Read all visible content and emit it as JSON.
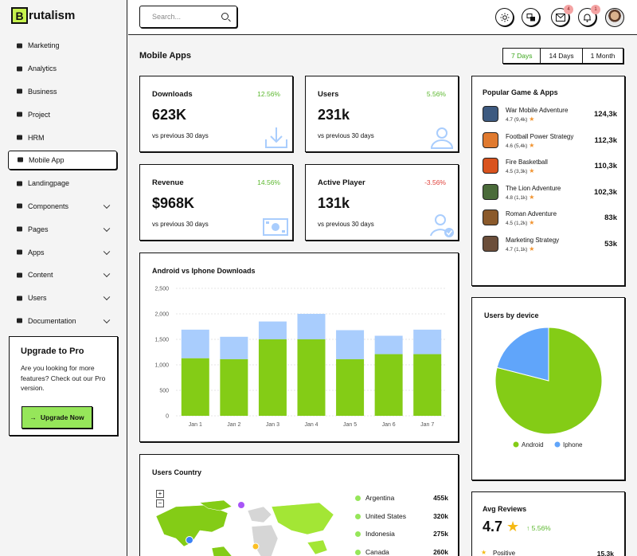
{
  "logo": {
    "letter": "B",
    "text": "rutalism"
  },
  "sidebar": {
    "items": [
      {
        "label": "Marketing",
        "icon": "megaphone-icon"
      },
      {
        "label": "Analytics",
        "icon": "bar-chart-icon"
      },
      {
        "label": "Business",
        "icon": "briefcase-icon"
      },
      {
        "label": "Project",
        "icon": "clipboard-icon"
      },
      {
        "label": "HRM",
        "icon": "org-chart-icon"
      },
      {
        "label": "Mobile App",
        "icon": "mobile-icon",
        "active": true
      },
      {
        "label": "Landingpage",
        "icon": "rocket-icon"
      },
      {
        "label": "Components",
        "icon": "layers-icon",
        "expandable": true
      },
      {
        "label": "Pages",
        "icon": "page-icon",
        "expandable": true
      },
      {
        "label": "Apps",
        "icon": "puzzle-icon",
        "expandable": true
      },
      {
        "label": "Content",
        "icon": "file-icon",
        "expandable": true
      },
      {
        "label": "Users",
        "icon": "user-icon",
        "expandable": true
      },
      {
        "label": "Documentation",
        "icon": "book-icon",
        "expandable": true
      }
    ],
    "upgrade": {
      "title": "Upgrade to Pro",
      "text": "Are you looking for more features? Check out our Pro version.",
      "button": "Upgrade Now"
    }
  },
  "topbar": {
    "search_placeholder": "Search...",
    "mail_badge": "4",
    "bell_badge": "1"
  },
  "page": {
    "title": "Mobile Apps",
    "ranges": [
      "7 Days",
      "14 Days",
      "1 Month"
    ],
    "selected_range": "7 Days"
  },
  "stats": [
    {
      "title": "Downloads",
      "value": "623K",
      "change": "12.56%",
      "sub": "vs previous 30 days",
      "positive": true
    },
    {
      "title": "Users",
      "value": "231k",
      "change": "5.56%",
      "sub": "vs previous 30 days",
      "positive": true
    },
    {
      "title": "Revenue",
      "value": "$968K",
      "change": "14.56%",
      "sub": "vs previous 30 days",
      "positive": true
    },
    {
      "title": "Active Player",
      "value": "131k",
      "change": "-3.56%",
      "sub": "vs previous 30 days",
      "positive": false
    }
  ],
  "popular": {
    "title": "Popular Game & Apps",
    "items": [
      {
        "name": "War Mobile Adventure",
        "rating": "4.7 (9,4k)",
        "value": "124,3k",
        "color": "#3d5a80"
      },
      {
        "name": "Football Power Strategy",
        "rating": "4.6 (5,4k)",
        "value": "112,3k",
        "color": "#e07a2f"
      },
      {
        "name": "Fire Basketball",
        "rating": "4.5 (3,3k)",
        "value": "110,3k",
        "color": "#d9531e"
      },
      {
        "name": "The Lion Adventure",
        "rating": "4.8 (1,1k)",
        "value": "102,3k",
        "color": "#4a6b3a"
      },
      {
        "name": "Roman Adventure",
        "rating": "4.5 (1,2k)",
        "value": "83k",
        "color": "#8b5a2b"
      },
      {
        "name": "Marketing Strategy",
        "rating": "4.7 (1,1k)",
        "value": "53k",
        "color": "#6b4e3a"
      }
    ]
  },
  "chart_data": [
    {
      "type": "bar",
      "title": "Android vs Iphone Downloads",
      "categories": [
        "Jan 1",
        "Jan 2",
        "Jan 3",
        "Jan 4",
        "Jan 5",
        "Jan 6",
        "Jan 7"
      ],
      "series": [
        {
          "name": "Android",
          "values": [
            1130,
            1110,
            1500,
            1500,
            1110,
            1210,
            1210
          ],
          "color": "#84cc16"
        },
        {
          "name": "Iphone",
          "values": [
            560,
            440,
            350,
            500,
            570,
            360,
            480
          ],
          "color": "#a9cdfd"
        }
      ],
      "stacked": true,
      "ylim": [
        0,
        2500
      ],
      "yticks": [
        "0",
        "500",
        "1,000",
        "1,500",
        "2,000",
        "2,500"
      ],
      "grid": true
    },
    {
      "type": "pie",
      "title": "Users by device",
      "series": [
        {
          "name": "Android",
          "value": 79,
          "color": "#84cc16"
        },
        {
          "name": "Iphone",
          "value": 21,
          "color": "#60a5fa"
        }
      ],
      "legend": "bottom"
    }
  ],
  "countries": {
    "title": "Users Country",
    "items": [
      {
        "name": "Argentina",
        "value": "455k"
      },
      {
        "name": "United States",
        "value": "320k"
      },
      {
        "name": "Indonesia",
        "value": "275k"
      },
      {
        "name": "Canada",
        "value": "260k"
      }
    ]
  },
  "reviews": {
    "title": "Avg Reviews",
    "score": "4.7",
    "change": "5.56%",
    "positive_label": "Positive",
    "positive_value": "15.3k"
  },
  "colors": {
    "accent": "#96e65a",
    "positive": "#5cb82f",
    "negative": "#e0413a",
    "blue": "#a9cdfd"
  }
}
